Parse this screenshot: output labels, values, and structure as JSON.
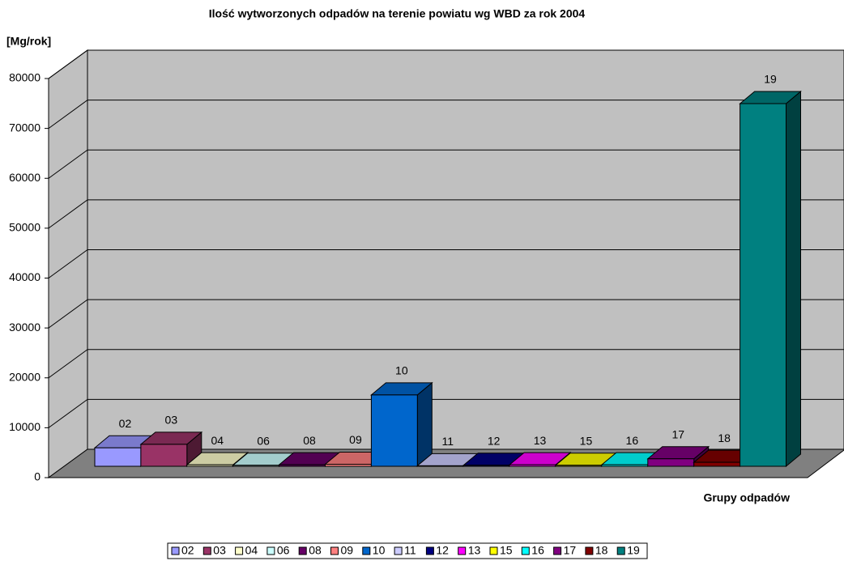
{
  "chart_data": {
    "type": "bar3d",
    "title": "Ilość wytworzonych odpadów na terenie powiatu wg WBD za rok 2004",
    "y_label": "[Mg/rok]",
    "x_label": "Grupy odpadów",
    "categories": [
      "02",
      "03",
      "04",
      "06",
      "08",
      "09",
      "10",
      "11",
      "12",
      "13",
      "15",
      "16",
      "17",
      "18",
      "19"
    ],
    "series": [
      {
        "name": "Ilość",
        "values": [
          3700,
          4400,
          300,
          200,
          300,
          400,
          14300,
          100,
          200,
          300,
          200,
          300,
          1500,
          800,
          72700
        ]
      }
    ],
    "colors": [
      "#9999ff",
      "#993366",
      "#ffffcc",
      "#ccffff",
      "#660066",
      "#ff8080",
      "#0066cc",
      "#ccccff",
      "#000080",
      "#ff00ff",
      "#ffff00",
      "#00ffff",
      "#800080",
      "#800000",
      "#008080"
    ],
    "ylim": [
      0,
      80000
    ],
    "yticks": [
      0,
      10000,
      20000,
      30000,
      40000,
      50000,
      60000,
      70000,
      80000
    ],
    "grid": true
  }
}
